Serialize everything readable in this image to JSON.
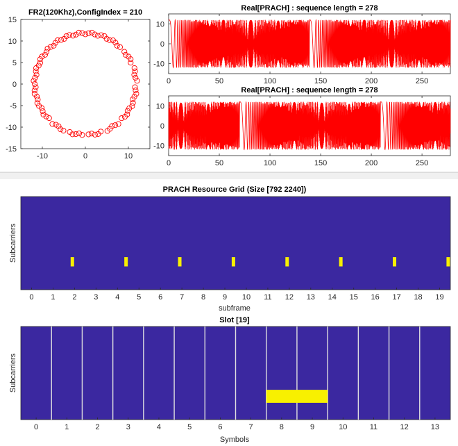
{
  "chart_data": [
    {
      "type": "scatter",
      "title": "FR2(120Khz),ConfigIndex = 210",
      "xlabel": "",
      "ylabel": "",
      "xlim": [
        -15,
        15
      ],
      "ylim": [
        -15,
        15
      ],
      "xticks": [
        -10,
        0,
        10
      ],
      "yticks": [
        -15,
        -10,
        -5,
        0,
        5,
        10,
        15
      ],
      "series": [
        {
          "marker": "circle-open",
          "radius": 11.8,
          "count": 100
        }
      ],
      "color": "#ff0000",
      "grid": false
    },
    {
      "type": "line",
      "title": "Real[PRACH] : sequence length = 278",
      "xlabel": "",
      "ylabel": "",
      "xlim": [
        0,
        278
      ],
      "ylim": [
        -15,
        15
      ],
      "xticks": [
        0,
        50,
        100,
        150,
        200,
        250
      ],
      "yticks": [
        -10,
        0,
        10
      ],
      "amplitude": 12,
      "color": "#ff0000",
      "grid": false
    },
    {
      "type": "line",
      "title": "Real[PRACH] : sequence length = 278",
      "xlabel": "",
      "ylabel": "",
      "xlim": [
        0,
        278
      ],
      "ylim": [
        -15,
        15
      ],
      "xticks": [
        0,
        50,
        100,
        150,
        200,
        250
      ],
      "yticks": [
        -10,
        0,
        10
      ],
      "amplitude": 12,
      "color": "#ff0000",
      "grid": false
    },
    {
      "type": "heatmap",
      "title": "PRACH Resource Grid (Size [792 2240])",
      "xlabel": "subframe",
      "ylabel": "Subcarriers",
      "xticks": [
        0,
        1,
        2,
        3,
        4,
        5,
        6,
        7,
        8,
        9,
        10,
        11,
        12,
        13,
        14,
        15,
        16,
        17,
        18,
        19
      ],
      "xlim": [
        -0.5,
        19.5
      ],
      "background_color": "#3b28a0",
      "active_color": "#f8f000",
      "active_x": [
        1.9,
        4.4,
        6.9,
        9.4,
        11.9,
        14.4,
        16.9,
        19.4
      ],
      "active_band": [
        0.25,
        0.5
      ]
    },
    {
      "type": "heatmap",
      "title": "Slot [19]",
      "xlabel": "Symbols",
      "ylabel": "Subcarriers",
      "xticks": [
        0,
        1,
        2,
        3,
        4,
        5,
        6,
        7,
        8,
        9,
        10,
        11,
        12,
        13
      ],
      "xlim": [
        -0.5,
        13.5
      ],
      "background_color": "#3b28a0",
      "active_color": "#f8f000",
      "divider_color": "#e0e0e0",
      "active_symbols": [
        8,
        9
      ],
      "active_band": [
        0.18,
        0.32
      ]
    }
  ]
}
